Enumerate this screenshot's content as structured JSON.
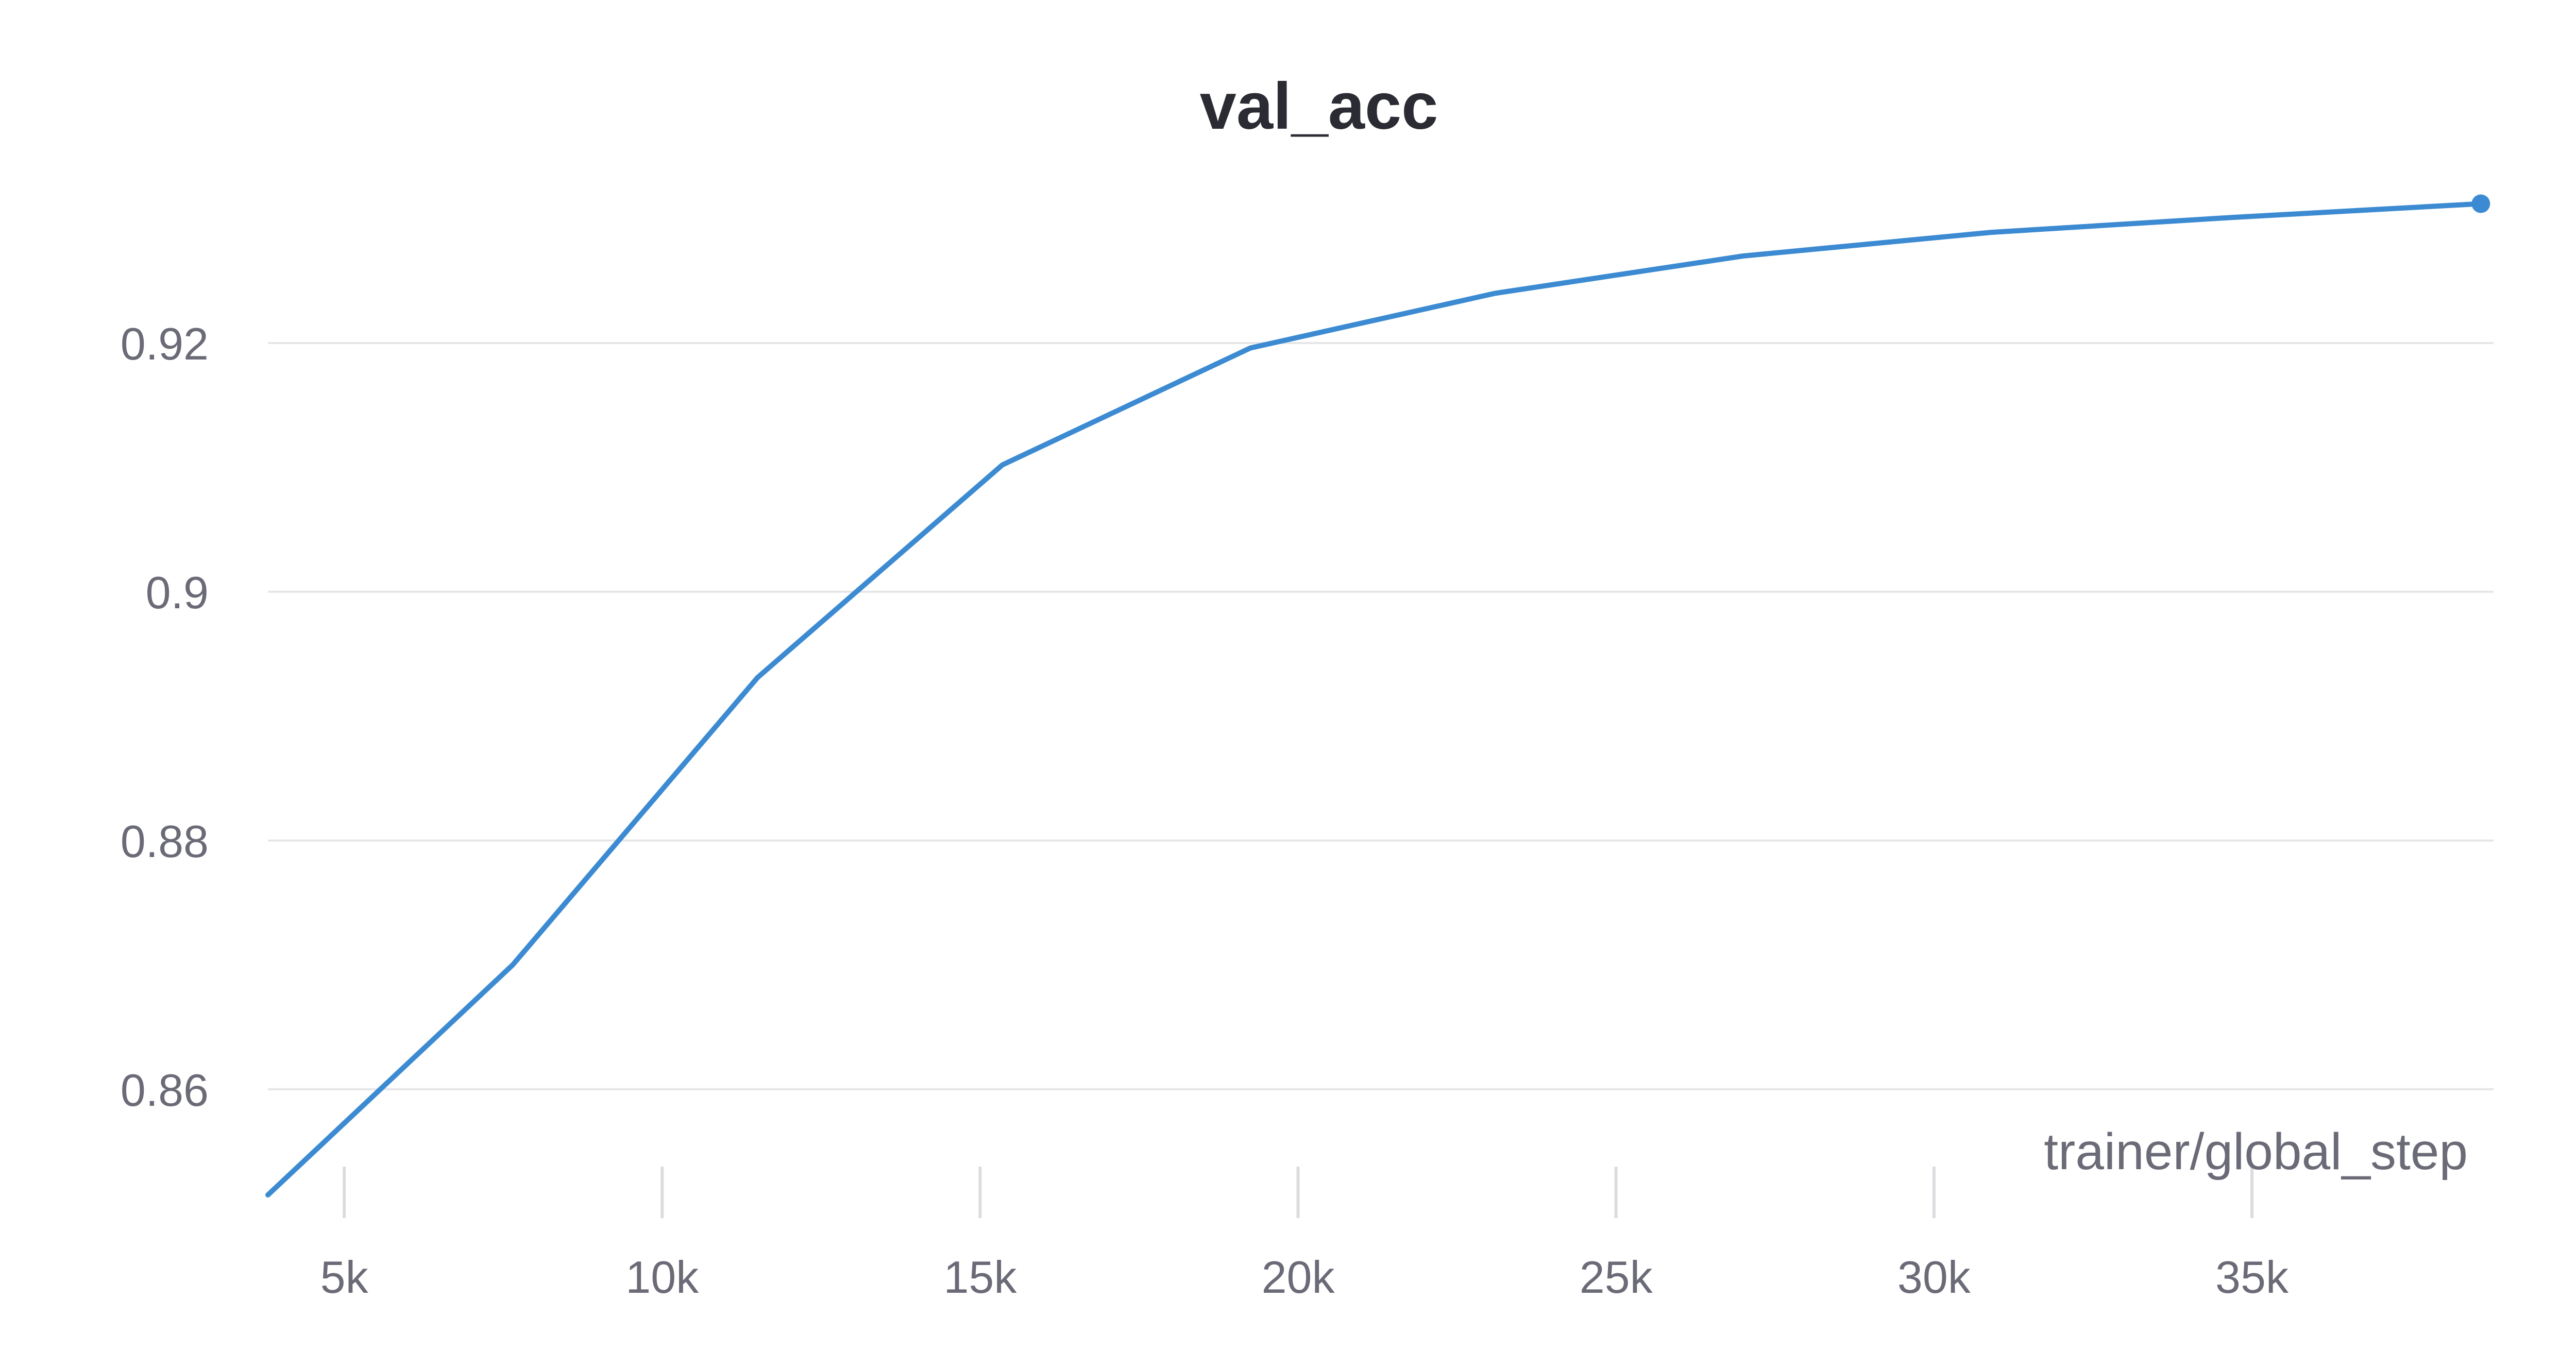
{
  "chart_data": {
    "type": "line",
    "title": "val_acc",
    "xlabel": "trainer/global_step",
    "ylabel": "",
    "xlim": [
      3800,
      38800
    ],
    "ylim": [
      0.8515,
      0.9335
    ],
    "x_ticks": [
      5000,
      10000,
      15000,
      20000,
      25000,
      30000,
      35000
    ],
    "x_tick_labels": [
      "5k",
      "10k",
      "15k",
      "20k",
      "25k",
      "30k",
      "35k"
    ],
    "y_ticks": [
      0.86,
      0.88,
      0.9,
      0.92
    ],
    "y_tick_labels": [
      "0.86",
      "0.88",
      "0.9",
      "0.92"
    ],
    "grid": "horizontal",
    "series": [
      {
        "color": "#3c8bd2",
        "x": [
          3800,
          7650,
          11500,
          15350,
          19250,
          23100,
          27000,
          30900,
          34700,
          38600
        ],
        "y": [
          0.8515,
          0.87,
          0.8931,
          0.9102,
          0.9196,
          0.924,
          0.927,
          0.9289,
          0.9301,
          0.9312
        ]
      }
    ]
  }
}
